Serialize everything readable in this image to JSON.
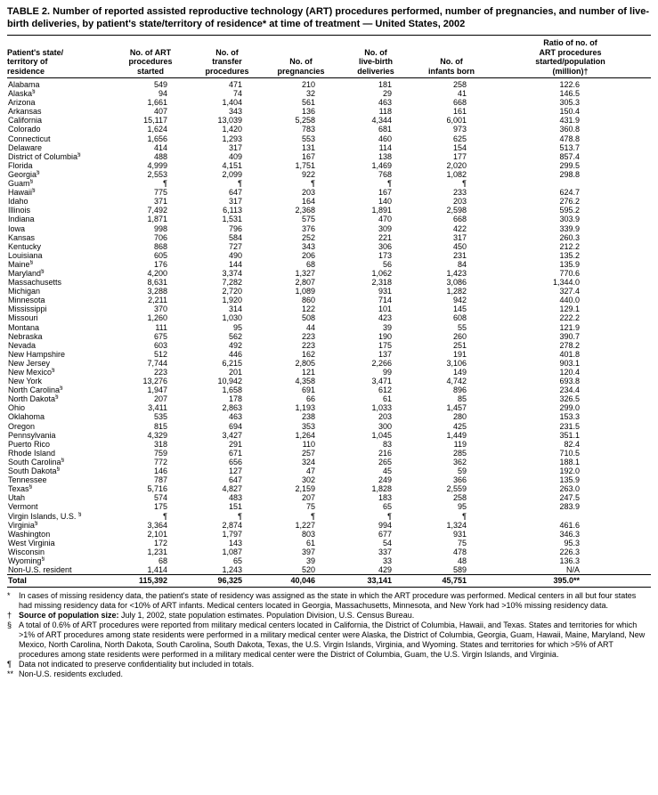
{
  "colors": {
    "text": "#000000",
    "background": "#ffffff"
  },
  "title": "TABLE 2. Number of reported assisted reproductive technology (ART) procedures performed, number of pregnancies, and number of live-birth deliveries, by patient's state/territory of residence* at time of treatment — United States, 2002",
  "table": {
    "columns": [
      "Patient's state/\nterritory of\nresidence",
      "No. of ART\nprocedures\nstarted",
      "No. of\ntransfer\nprocedures",
      "No. of\npregnancies",
      "No. of\nlive-birth\ndeliveries",
      "No. of\ninfants born",
      "Ratio of no. of\nART procedures\nstarted/population\n(million)†"
    ],
    "rows": [
      {
        "state": "Alabama",
        "marker": "",
        "values": [
          "549",
          "471",
          "210",
          "181",
          "258",
          "122.6"
        ]
      },
      {
        "state": "Alaska",
        "marker": "§",
        "values": [
          "94",
          "74",
          "32",
          "29",
          "41",
          "146.5"
        ]
      },
      {
        "state": "Arizona",
        "marker": "",
        "values": [
          "1,661",
          "1,404",
          "561",
          "463",
          "668",
          "305.3"
        ]
      },
      {
        "state": "Arkansas",
        "marker": "",
        "values": [
          "407",
          "343",
          "136",
          "118",
          "161",
          "150.4"
        ]
      },
      {
        "state": "California",
        "marker": "",
        "values": [
          "15,117",
          "13,039",
          "5,258",
          "4,344",
          "6,001",
          "431.9"
        ]
      },
      {
        "state": "Colorado",
        "marker": "",
        "values": [
          "1,624",
          "1,420",
          "783",
          "681",
          "973",
          "360.8"
        ]
      },
      {
        "state": "Connecticut",
        "marker": "",
        "values": [
          "1,656",
          "1,293",
          "553",
          "460",
          "625",
          "478.8"
        ]
      },
      {
        "state": "Delaware",
        "marker": "",
        "values": [
          "414",
          "317",
          "131",
          "114",
          "154",
          "513.7"
        ]
      },
      {
        "state": "District of Columbia",
        "marker": "§",
        "values": [
          "488",
          "409",
          "167",
          "138",
          "177",
          "857.4"
        ]
      },
      {
        "state": "Florida",
        "marker": "",
        "values": [
          "4,999",
          "4,151",
          "1,751",
          "1,469",
          "2,020",
          "299.5"
        ]
      },
      {
        "state": "Georgia",
        "marker": "§",
        "values": [
          "2,553",
          "2,099",
          "922",
          "768",
          "1,082",
          "298.8"
        ]
      },
      {
        "state": "Guam",
        "marker": "§",
        "values": [
          "¶",
          "¶",
          "¶",
          "¶",
          "¶",
          ""
        ]
      },
      {
        "state": "Hawaii",
        "marker": "§",
        "values": [
          "775",
          "647",
          "203",
          "167",
          "233",
          "624.7"
        ]
      },
      {
        "state": "Idaho",
        "marker": "",
        "values": [
          "371",
          "317",
          "164",
          "140",
          "203",
          "276.2"
        ]
      },
      {
        "state": "Illinois",
        "marker": "",
        "values": [
          "7,492",
          "6,113",
          "2,368",
          "1,891",
          "2,598",
          "595.2"
        ]
      },
      {
        "state": "Indiana",
        "marker": "",
        "values": [
          "1,871",
          "1,531",
          "575",
          "470",
          "668",
          "303.9"
        ]
      },
      {
        "state": "Iowa",
        "marker": "",
        "values": [
          "998",
          "796",
          "376",
          "309",
          "422",
          "339.9"
        ]
      },
      {
        "state": "Kansas",
        "marker": "",
        "values": [
          "706",
          "584",
          "252",
          "221",
          "317",
          "260.3"
        ]
      },
      {
        "state": "Kentucky",
        "marker": "",
        "values": [
          "868",
          "727",
          "343",
          "306",
          "450",
          "212.2"
        ]
      },
      {
        "state": "Louisiana",
        "marker": "",
        "values": [
          "605",
          "490",
          "206",
          "173",
          "231",
          "135.2"
        ]
      },
      {
        "state": "Maine",
        "marker": "§",
        "values": [
          "176",
          "144",
          "68",
          "56",
          "84",
          "135.9"
        ]
      },
      {
        "state": "Maryland",
        "marker": "§",
        "values": [
          "4,200",
          "3,374",
          "1,327",
          "1,062",
          "1,423",
          "770.6"
        ]
      },
      {
        "state": "Massachusetts",
        "marker": "",
        "values": [
          "8,631",
          "7,282",
          "2,807",
          "2,318",
          "3,086",
          "1,344.0"
        ]
      },
      {
        "state": "Michigan",
        "marker": "",
        "values": [
          "3,288",
          "2,720",
          "1,089",
          "931",
          "1,282",
          "327.4"
        ]
      },
      {
        "state": "Minnesota",
        "marker": "",
        "values": [
          "2,211",
          "1,920",
          "860",
          "714",
          "942",
          "440.0"
        ]
      },
      {
        "state": "Mississippi",
        "marker": "",
        "values": [
          "370",
          "314",
          "122",
          "101",
          "145",
          "129.1"
        ]
      },
      {
        "state": "Missouri",
        "marker": "",
        "values": [
          "1,260",
          "1,030",
          "508",
          "423",
          "608",
          "222.2"
        ]
      },
      {
        "state": "Montana",
        "marker": "",
        "values": [
          "111",
          "95",
          "44",
          "39",
          "55",
          "121.9"
        ]
      },
      {
        "state": "Nebraska",
        "marker": "",
        "values": [
          "675",
          "562",
          "223",
          "190",
          "260",
          "390.7"
        ]
      },
      {
        "state": "Nevada",
        "marker": "",
        "values": [
          "603",
          "492",
          "223",
          "175",
          "251",
          "278.2"
        ]
      },
      {
        "state": "New Hampshire",
        "marker": "",
        "values": [
          "512",
          "446",
          "162",
          "137",
          "191",
          "401.8"
        ]
      },
      {
        "state": "New Jersey",
        "marker": "",
        "values": [
          "7,744",
          "6,215",
          "2,805",
          "2,266",
          "3,106",
          "903.1"
        ]
      },
      {
        "state": "New Mexico",
        "marker": "§",
        "values": [
          "223",
          "201",
          "121",
          "99",
          "149",
          "120.4"
        ]
      },
      {
        "state": "New York",
        "marker": "",
        "values": [
          "13,276",
          "10,942",
          "4,358",
          "3,471",
          "4,742",
          "693.8"
        ]
      },
      {
        "state": "North Carolina",
        "marker": "§",
        "values": [
          "1,947",
          "1,658",
          "691",
          "612",
          "896",
          "234.4"
        ]
      },
      {
        "state": "North Dakota",
        "marker": "§",
        "values": [
          "207",
          "178",
          "66",
          "61",
          "85",
          "326.5"
        ]
      },
      {
        "state": "Ohio",
        "marker": "",
        "values": [
          "3,411",
          "2,863",
          "1,193",
          "1,033",
          "1,457",
          "299.0"
        ]
      },
      {
        "state": "Oklahoma",
        "marker": "",
        "values": [
          "535",
          "463",
          "238",
          "203",
          "280",
          "153.3"
        ]
      },
      {
        "state": "Oregon",
        "marker": "",
        "values": [
          "815",
          "694",
          "353",
          "300",
          "425",
          "231.5"
        ]
      },
      {
        "state": "Pennsylvania",
        "marker": "",
        "values": [
          "4,329",
          "3,427",
          "1,264",
          "1,045",
          "1,449",
          "351.1"
        ]
      },
      {
        "state": "Puerto Rico",
        "marker": "",
        "values": [
          "318",
          "291",
          "110",
          "83",
          "119",
          "82.4"
        ]
      },
      {
        "state": "Rhode Island",
        "marker": "",
        "values": [
          "759",
          "671",
          "257",
          "216",
          "285",
          "710.5"
        ]
      },
      {
        "state": "South Carolina",
        "marker": "§",
        "values": [
          "772",
          "656",
          "324",
          "265",
          "362",
          "188.1"
        ]
      },
      {
        "state": "South Dakota",
        "marker": "§",
        "values": [
          "146",
          "127",
          "47",
          "45",
          "59",
          "192.0"
        ]
      },
      {
        "state": "Tennessee",
        "marker": "",
        "values": [
          "787",
          "647",
          "302",
          "249",
          "366",
          "135.9"
        ]
      },
      {
        "state": "Texas",
        "marker": "§",
        "values": [
          "5,716",
          "4,827",
          "2,159",
          "1,828",
          "2,559",
          "263.0"
        ]
      },
      {
        "state": "Utah",
        "marker": "",
        "values": [
          "574",
          "483",
          "207",
          "183",
          "258",
          "247.5"
        ]
      },
      {
        "state": "Vermont",
        "marker": "",
        "values": [
          "175",
          "151",
          "75",
          "65",
          "95",
          "283.9"
        ]
      },
      {
        "state": "Virgin Islands, U.S. ",
        "marker": "§",
        "values": [
          "¶",
          "¶",
          "¶",
          "¶",
          "¶",
          ""
        ]
      },
      {
        "state": "Virginia",
        "marker": "§",
        "values": [
          "3,364",
          "2,874",
          "1,227",
          "994",
          "1,324",
          "461.6"
        ]
      },
      {
        "state": "Washington",
        "marker": "",
        "values": [
          "2,101",
          "1,797",
          "803",
          "677",
          "931",
          "346.3"
        ]
      },
      {
        "state": "West Virginia",
        "marker": "",
        "values": [
          "172",
          "143",
          "61",
          "54",
          "75",
          "95.3"
        ]
      },
      {
        "state": "Wisconsin",
        "marker": "",
        "values": [
          "1,231",
          "1,087",
          "397",
          "337",
          "478",
          "226.3"
        ]
      },
      {
        "state": "Wyoming",
        "marker": "§",
        "values": [
          "68",
          "65",
          "39",
          "33",
          "48",
          "136.3"
        ]
      },
      {
        "state": "Non-U.S. resident",
        "marker": "",
        "values": [
          "1,414",
          "1,243",
          "520",
          "429",
          "589",
          "N/A"
        ]
      }
    ],
    "total_row": {
      "state": "Total",
      "marker": "",
      "values": [
        "115,392",
        "96,325",
        "40,046",
        "33,141",
        "45,751",
        "395.0**"
      ]
    }
  },
  "footnotes": [
    {
      "marker": "*",
      "bold": "",
      "text": "In cases of missing residency data, the patient's state of residency was assigned as the state in which the ART procedure was performed. Medical centers in all but four states had missing residency data for <10% of ART infants. Medical centers located in Georgia, Massachusetts, Minnesota, and New York had >10% missing residency data."
    },
    {
      "marker": "†",
      "bold": "Source of population size:",
      "text": " July 1, 2002, state population estimates. Population Division, U.S. Census Bureau."
    },
    {
      "marker": "§",
      "bold": "",
      "text": "A total of 0.6% of ART procedures were reported from military medical centers located in California, the District of Columbia, Hawaii, and Texas. States and territories for which >1% of ART procedures among state residents were performed in a military medical center were Alaska, the District of Columbia, Georgia, Guam, Hawaii, Maine, Maryland, New Mexico, North Carolina, North Dakota, South Carolina, South Dakota, Texas, the U.S. Virgin Islands, Virginia, and Wyoming. States and territories for which >5% of ART procedures among state residents were performed in a military medical center were the District of Columbia, Guam, the U.S. Virgin Islands, and Virginia."
    },
    {
      "marker": "¶",
      "bold": "",
      "text": "Data not indicated to preserve confidentiality but included in totals."
    },
    {
      "marker": "**",
      "bold": "",
      "text": "Non-U.S. residents excluded."
    }
  ]
}
